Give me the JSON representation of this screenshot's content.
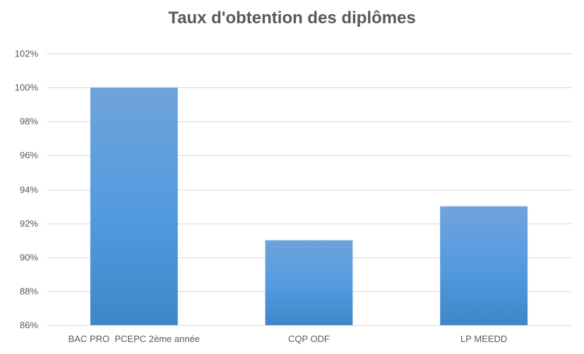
{
  "chart_data": {
    "type": "bar",
    "title": "Taux d'obtention des diplômes",
    "categories": [
      "BAC PRO  PCEPC 2ème année",
      "CQP ODF",
      "LP MEEDD"
    ],
    "values": [
      100,
      91,
      93
    ],
    "value_unit": "%",
    "xlabel": "",
    "ylabel": "",
    "ylim": [
      86,
      102
    ],
    "yticks": [
      86,
      88,
      90,
      92,
      94,
      96,
      98,
      100,
      102
    ],
    "ytick_labels": [
      "86%",
      "88%",
      "90%",
      "92%",
      "94%",
      "96%",
      "98%",
      "100%",
      "102%"
    ],
    "grid": true,
    "legend": "none",
    "colors": {
      "bar_top": "#6FA3DB",
      "bar_mid": "#559BE0",
      "bar_bottom": "#3F86C9",
      "grid": "#D9D9D9",
      "text": "#595959"
    }
  }
}
